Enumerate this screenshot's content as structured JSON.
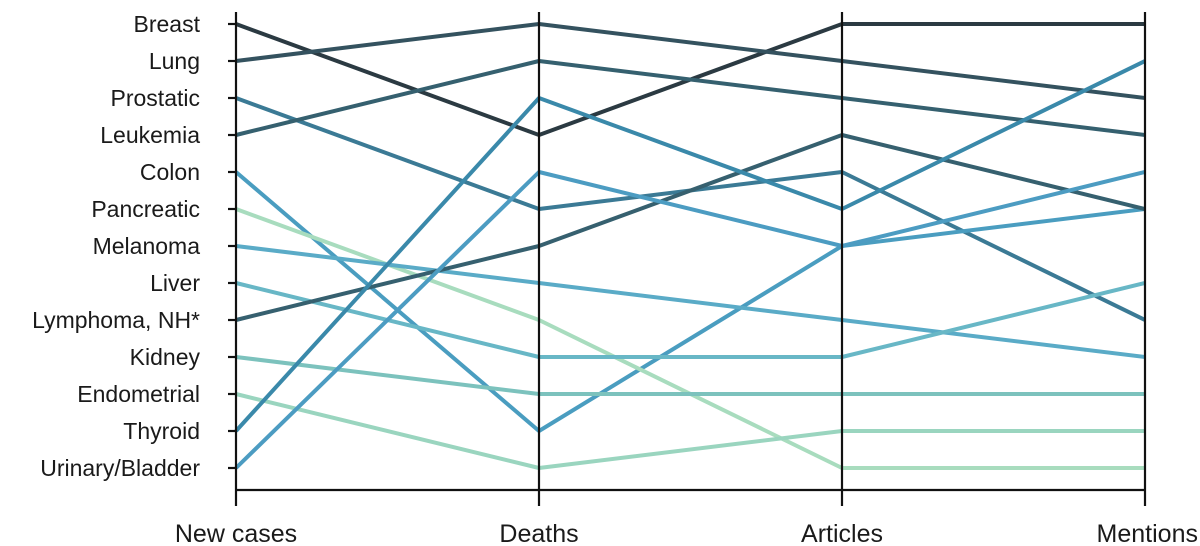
{
  "chart_data": {
    "type": "line",
    "chart_kind": "parallel-coordinates rank chart",
    "axes": [
      "New cases",
      "Deaths",
      "Articles",
      "Mentions"
    ],
    "rank_labels": [
      "Breast",
      "Lung",
      "Prostatic",
      "Leukemia",
      "Colon",
      "Pancreatic",
      "Melanoma",
      "Liver",
      "Lymphoma, NH*",
      "Kidney",
      "Endometrial",
      "Thyroid",
      "Urinary/Bladder"
    ],
    "rank_range": [
      1,
      13
    ],
    "grid": false,
    "legend": "none",
    "series": [
      {
        "name": "Breast",
        "values": [
          1,
          4,
          1,
          1
        ],
        "color": "#2b3a42"
      },
      {
        "name": "Lung",
        "values": [
          2,
          1,
          2,
          3
        ],
        "color": "#34525f"
      },
      {
        "name": "Prostatic",
        "values": [
          3,
          6,
          5,
          9
        ],
        "color": "#3b7a95"
      },
      {
        "name": "Leukemia",
        "values": [
          4,
          2,
          3,
          4
        ],
        "color": "#35606f"
      },
      {
        "name": "Colon",
        "values": [
          5,
          12,
          7,
          6
        ],
        "color": "#4a9dc0"
      },
      {
        "name": "Pancreatic",
        "values": [
          6,
          9,
          13,
          13
        ],
        "color": "#a8dcbe"
      },
      {
        "name": "Melanoma",
        "values": [
          7,
          8,
          9,
          10
        ],
        "color": "#5aabc7"
      },
      {
        "name": "Liver",
        "values": [
          8,
          10,
          10,
          8
        ],
        "color": "#68b7c6"
      },
      {
        "name": "Lymphoma, NH*",
        "values": [
          9,
          7,
          4,
          6
        ],
        "color": "#36606f"
      },
      {
        "name": "Kidney",
        "values": [
          10,
          11,
          11,
          11
        ],
        "color": "#7cc2bd"
      },
      {
        "name": "Endometrial",
        "values": [
          11,
          13,
          12,
          12
        ],
        "color": "#9ad5bf"
      },
      {
        "name": "Thyroid",
        "values": [
          12,
          3,
          6,
          2
        ],
        "color": "#3a89aa"
      },
      {
        "name": "Urinary/Bladder",
        "values": [
          13,
          5,
          7,
          5
        ],
        "color": "#4c9cc2"
      }
    ]
  }
}
